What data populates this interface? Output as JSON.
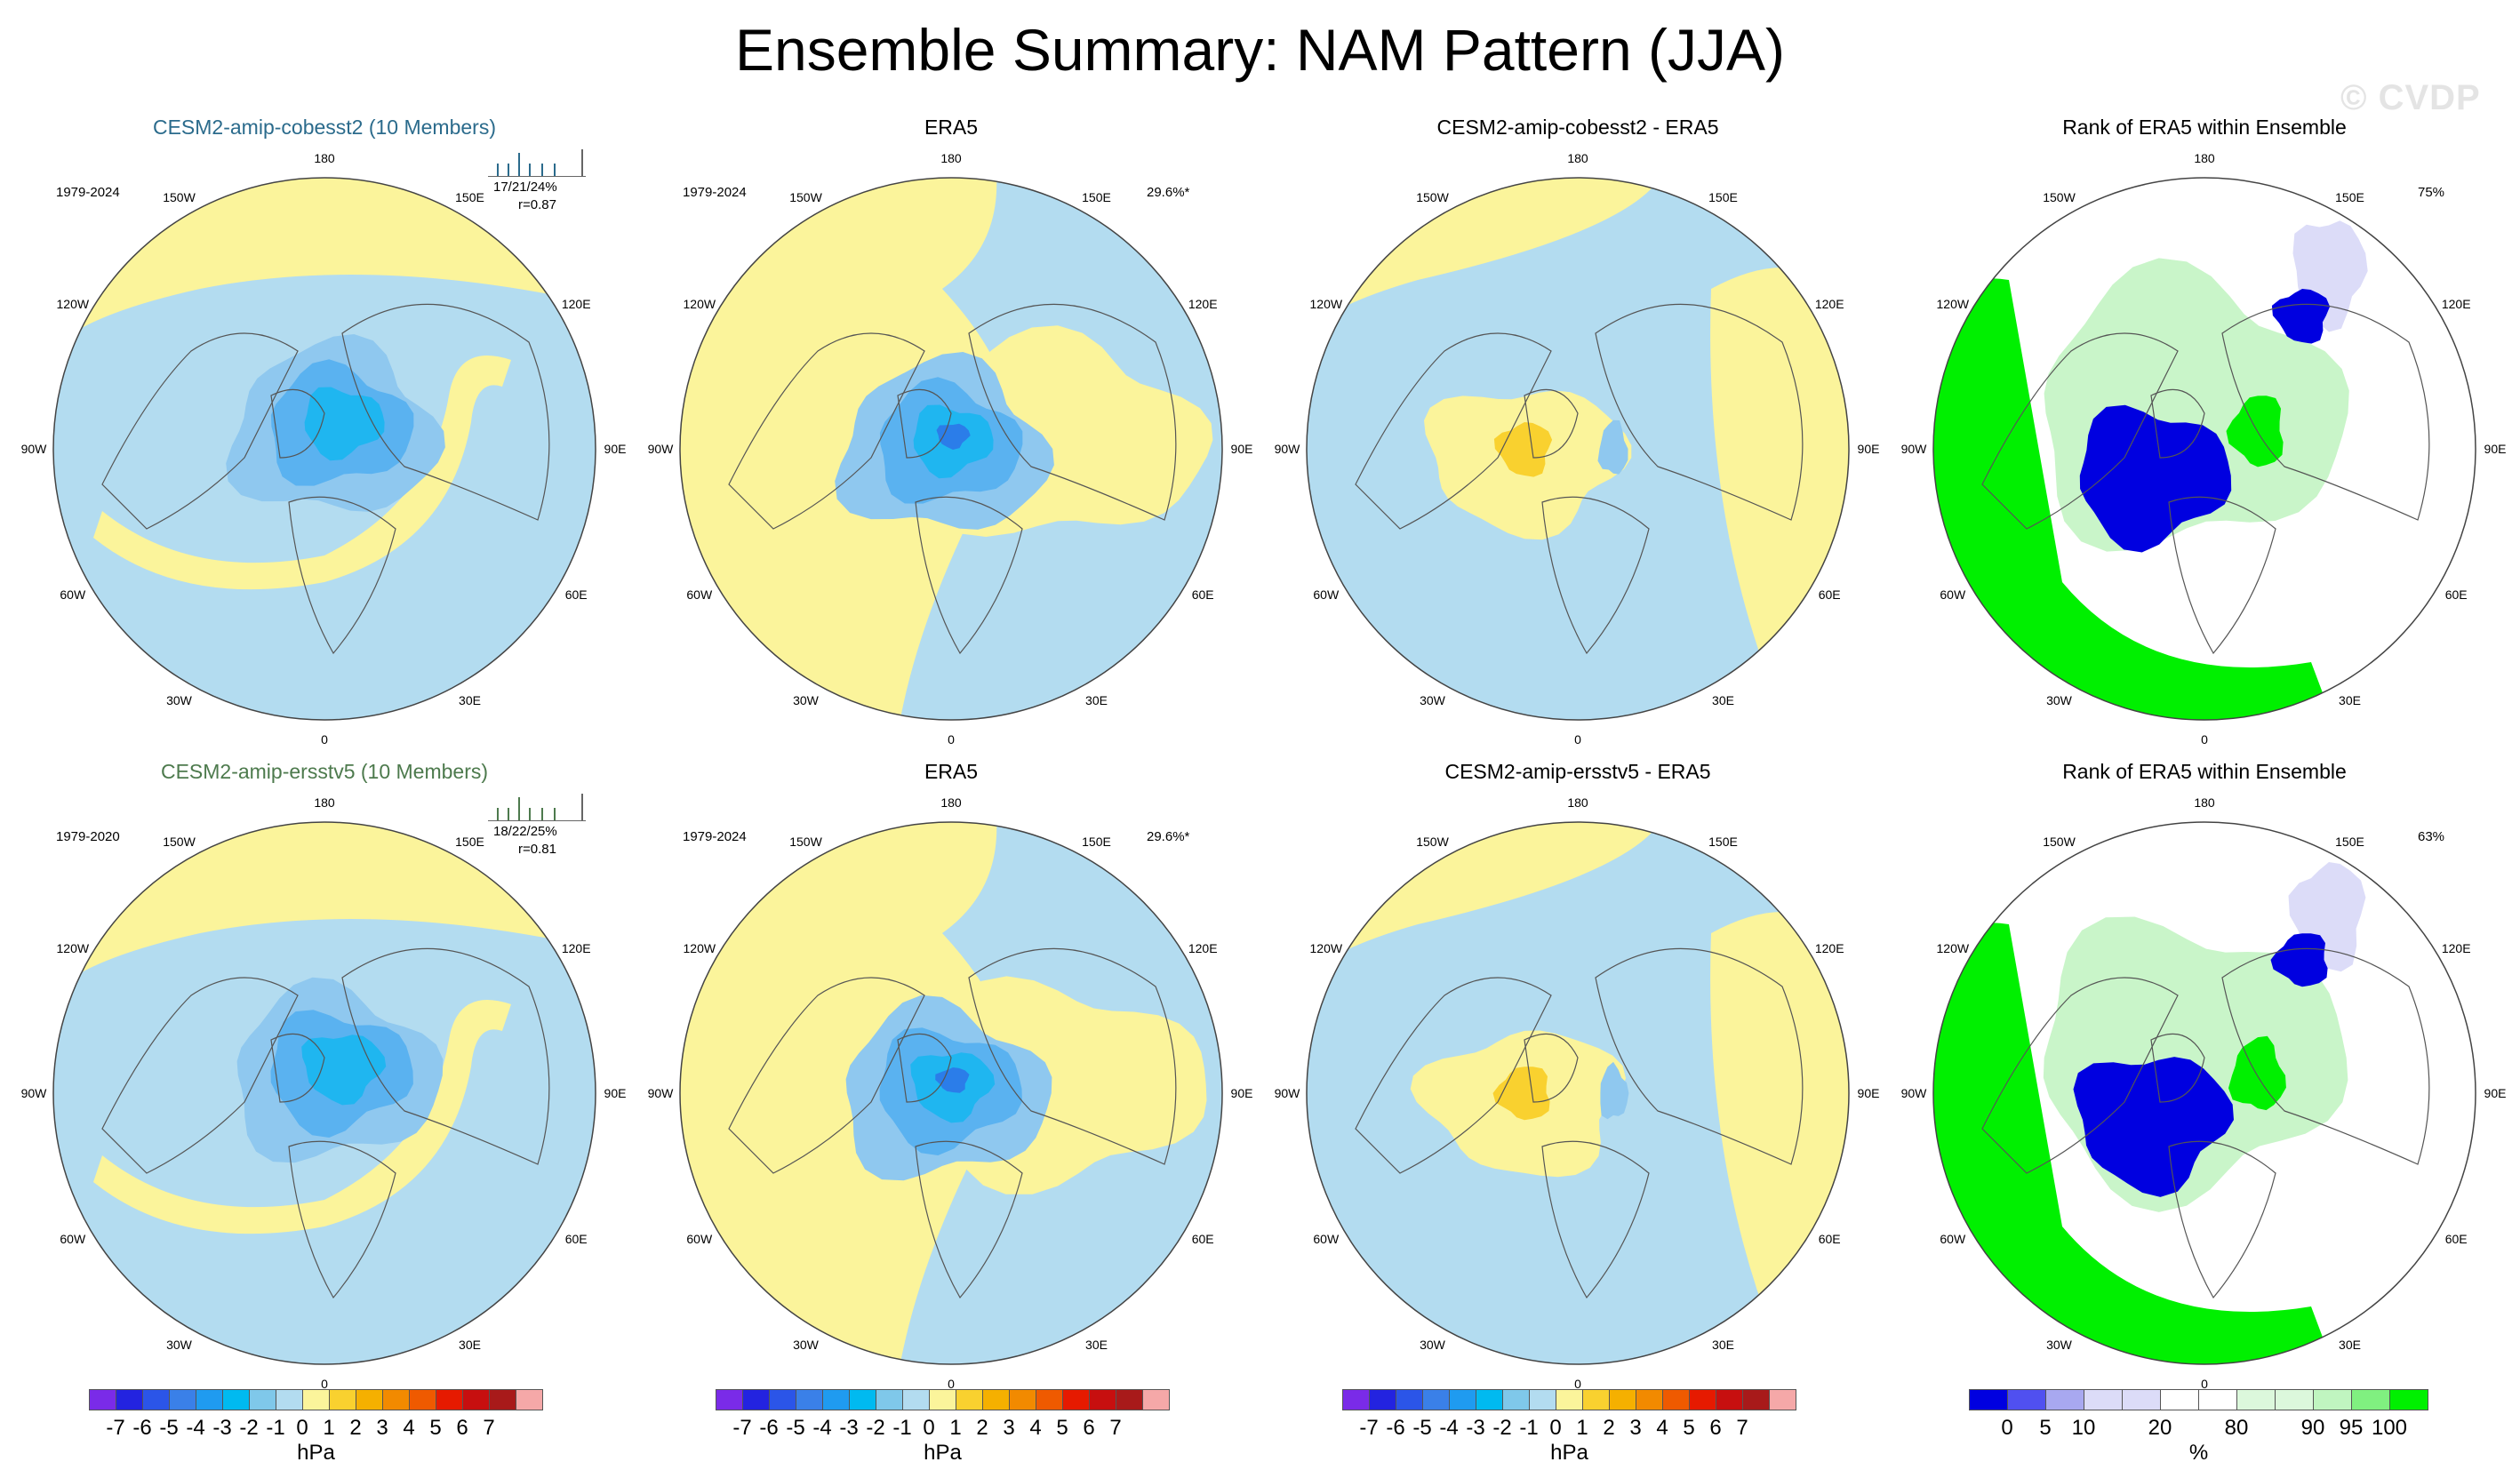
{
  "title": "Ensemble Summary: NAM Pattern (JJA)",
  "watermark": "© CVDP",
  "colors": {
    "pos": "#fbf49b",
    "neg": "#b3dcf0",
    "neg2": "#8fc8ef",
    "neg3": "#5ab2f0",
    "neg4": "#1fb6f0",
    "neg5": "#2b7de9",
    "pos2": "#f9d12f",
    "rank_green": "#00f000",
    "rank_lightgreen": "#c9f5c9",
    "rank_blue": "#0000e0",
    "rank_lavender": "#dcdcf8"
  },
  "lon_labels": [
    "180",
    "150E",
    "120E",
    "90E",
    "60E",
    "30E",
    "0",
    "30W",
    "60W",
    "90W",
    "120W",
    "150W"
  ],
  "rows": [
    {
      "panels": [
        {
          "title": "CESM2-amip-cobesst2 (10 Members)",
          "title_color": "#2b6b8c",
          "period": "1979-2024",
          "pct": "17/21/24%",
          "corr": "r=0.87"
        },
        {
          "title": "ERA5",
          "title_color": "#000000",
          "period": "1979-2024",
          "var": "29.6%*"
        },
        {
          "title": "CESM2-amip-cobesst2 - ERA5",
          "title_color": "#000000"
        },
        {
          "title": "Rank of ERA5 within Ensemble",
          "title_color": "#000000",
          "rank_pct": "75%"
        }
      ]
    },
    {
      "panels": [
        {
          "title": "CESM2-amip-ersstv5 (10 Members)",
          "title_color": "#4d7a4d",
          "period": "1979-2020",
          "pct": "18/22/25%",
          "corr": "r=0.81"
        },
        {
          "title": "ERA5",
          "title_color": "#000000",
          "period": "1979-2024",
          "var": "29.6%*"
        },
        {
          "title": "CESM2-amip-ersstv5 - ERA5",
          "title_color": "#000000"
        },
        {
          "title": "Rank of ERA5 within Ensemble",
          "title_color": "#000000",
          "rank_pct": "63%"
        }
      ]
    }
  ],
  "hpa_colorbar": {
    "colors": [
      "#7a2be8",
      "#2323e0",
      "#2b55e8",
      "#3a80e8",
      "#1f9bf0",
      "#00baf0",
      "#7fc8ea",
      "#b3dcf0",
      "#fbf49b",
      "#f9d12f",
      "#f5b000",
      "#f28a00",
      "#ef5a00",
      "#e61a00",
      "#c70f0f",
      "#a81a1a",
      "#f5a8a8"
    ],
    "ticks": [
      "-7",
      "-6",
      "-5",
      "-4",
      "-3",
      "-2",
      "-1",
      "0",
      "1",
      "2",
      "3",
      "4",
      "5",
      "6",
      "7"
    ],
    "units": "hPa"
  },
  "rank_colorbar": {
    "colors": [
      "#0000e0",
      "#5050f0",
      "#a8a8f0",
      "#dcdcf8",
      "#dcdcf8",
      "#ffffff",
      "#ffffff",
      "#dcf8dc",
      "#dcf8dc",
      "#c0f5c0",
      "#80f080",
      "#00f000"
    ],
    "ticks": [
      "0",
      "5",
      "10",
      "20",
      "80",
      "90",
      "95",
      "100"
    ],
    "units": "%"
  }
}
